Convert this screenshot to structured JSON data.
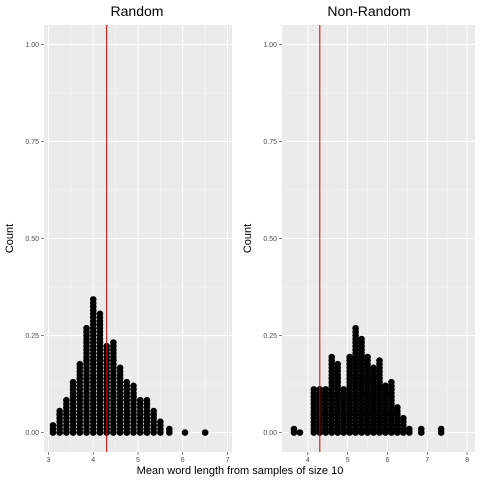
{
  "chart_data": [
    {
      "type": "dotplot",
      "title": "Random",
      "ylabel": "Count",
      "xlim": [
        2.9,
        7.1
      ],
      "ylim": [
        -0.05,
        1.05
      ],
      "x_ticks": [
        "3",
        "4",
        "5",
        "6",
        "7"
      ],
      "y_ticks": [
        "0.00",
        "0.25",
        "0.50",
        "0.75",
        "1.00"
      ],
      "reference_line": 4.3,
      "columns": [
        {
          "x": 3.1,
          "count": 3
        },
        {
          "x": 3.25,
          "count": 7
        },
        {
          "x": 3.4,
          "count": 10
        },
        {
          "x": 3.55,
          "count": 15
        },
        {
          "x": 3.7,
          "count": 20
        },
        {
          "x": 3.85,
          "count": 30
        },
        {
          "x": 4.0,
          "count": 38
        },
        {
          "x": 4.15,
          "count": 34
        },
        {
          "x": 4.3,
          "count": 25
        },
        {
          "x": 4.45,
          "count": 26
        },
        {
          "x": 4.6,
          "count": 19
        },
        {
          "x": 4.75,
          "count": 15
        },
        {
          "x": 4.9,
          "count": 14
        },
        {
          "x": 5.05,
          "count": 10
        },
        {
          "x": 5.2,
          "count": 10
        },
        {
          "x": 5.35,
          "count": 7
        },
        {
          "x": 5.5,
          "count": 4
        },
        {
          "x": 5.7,
          "count": 2
        },
        {
          "x": 6.05,
          "count": 1
        },
        {
          "x": 6.5,
          "count": 1
        }
      ]
    },
    {
      "type": "dotplot",
      "title": "Non-Random",
      "ylabel": "Count",
      "xlim": [
        3.35,
        8.2
      ],
      "ylim": [
        -0.05,
        1.05
      ],
      "x_ticks": [
        "4",
        "5",
        "6",
        "7",
        "8"
      ],
      "y_ticks": [
        "0.00",
        "0.25",
        "0.50",
        "0.75",
        "1.00"
      ],
      "reference_line": 4.3,
      "columns": [
        {
          "x": 3.65,
          "count": 2
        },
        {
          "x": 3.8,
          "count": 1
        },
        {
          "x": 4.15,
          "count": 13
        },
        {
          "x": 4.3,
          "count": 13
        },
        {
          "x": 4.45,
          "count": 13
        },
        {
          "x": 4.6,
          "count": 22
        },
        {
          "x": 4.75,
          "count": 20
        },
        {
          "x": 4.9,
          "count": 13
        },
        {
          "x": 5.05,
          "count": 22
        },
        {
          "x": 5.2,
          "count": 30
        },
        {
          "x": 5.35,
          "count": 27
        },
        {
          "x": 5.5,
          "count": 22
        },
        {
          "x": 5.65,
          "count": 19
        },
        {
          "x": 5.8,
          "count": 21
        },
        {
          "x": 5.95,
          "count": 14
        },
        {
          "x": 6.1,
          "count": 15
        },
        {
          "x": 6.25,
          "count": 8
        },
        {
          "x": 6.4,
          "count": 5
        },
        {
          "x": 6.55,
          "count": 2
        },
        {
          "x": 6.85,
          "count": 2
        },
        {
          "x": 7.35,
          "count": 2
        }
      ]
    }
  ],
  "shared_xlabel": "Mean word length from samples of size 10",
  "colors": {
    "panel_background": "#ebebeb",
    "grid_major": "#ffffff",
    "grid_minor": "#f5f5f5",
    "dot": "#000000",
    "reference_line": "#cc0000",
    "tick_text": "#4d4d4d"
  }
}
